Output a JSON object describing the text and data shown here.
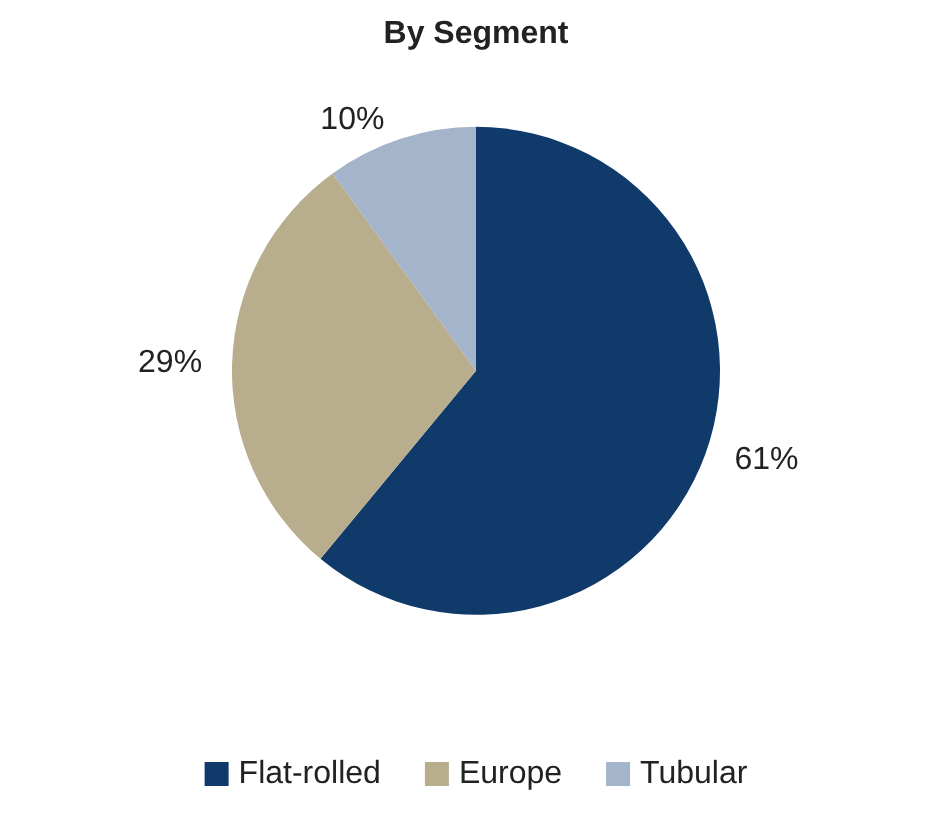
{
  "chart_data": {
    "type": "pie",
    "title": "By Segment",
    "categories": [
      "Flat-rolled",
      "Europe",
      "Tubular"
    ],
    "values": [
      61,
      29,
      10
    ],
    "colors": [
      "#0f3a6a",
      "#b8ae8e",
      "#a4b4ca"
    ],
    "value_labels": [
      "61%",
      "29%",
      "10%"
    ],
    "legend": "bottom"
  }
}
